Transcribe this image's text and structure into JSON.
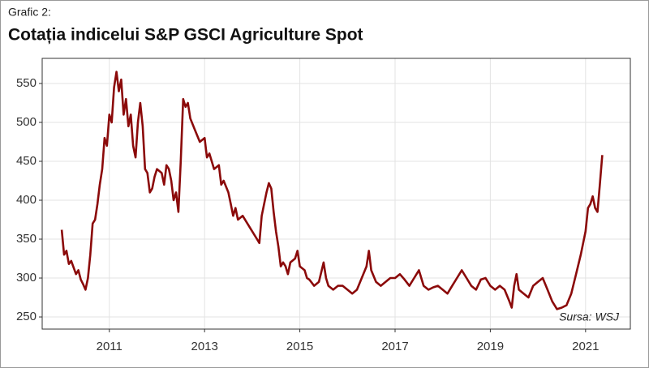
{
  "chart_data": {
    "type": "line",
    "subtitle": "Grafic 2:",
    "title": "Cotația indicelui S&P GSCI Agriculture Spot",
    "annotation": "Sursa: WSJ",
    "grid": true,
    "xlim": [
      2009.59,
      2021.94
    ],
    "ylim": [
      234.4,
      582.3
    ],
    "xticks": [
      2011,
      2013,
      2015,
      2017,
      2019,
      2021
    ],
    "yticks": [
      250,
      300,
      350,
      400,
      450,
      500,
      550
    ],
    "x": [
      2010.0,
      2010.05,
      2010.1,
      2010.15,
      2010.2,
      2010.3,
      2010.35,
      2010.4,
      2010.45,
      2010.5,
      2010.55,
      2010.6,
      2010.65,
      2010.7,
      2010.75,
      2010.8,
      2010.85,
      2010.9,
      2010.95,
      2011.0,
      2011.05,
      2011.1,
      2011.15,
      2011.2,
      2011.25,
      2011.3,
      2011.35,
      2011.4,
      2011.45,
      2011.5,
      2011.55,
      2011.6,
      2011.65,
      2011.7,
      2011.75,
      2011.8,
      2011.85,
      2011.9,
      2011.95,
      2012.0,
      2012.1,
      2012.15,
      2012.2,
      2012.25,
      2012.3,
      2012.35,
      2012.4,
      2012.45,
      2012.5,
      2012.55,
      2012.6,
      2012.65,
      2012.7,
      2012.8,
      2012.9,
      2013.0,
      2013.05,
      2013.1,
      2013.2,
      2013.3,
      2013.35,
      2013.4,
      2013.5,
      2013.55,
      2013.6,
      2013.65,
      2013.7,
      2013.8,
      2013.9,
      2014.0,
      2014.1,
      2014.15,
      2014.2,
      2014.3,
      2014.35,
      2014.4,
      2014.45,
      2014.5,
      2014.55,
      2014.6,
      2014.65,
      2014.7,
      2014.75,
      2014.8,
      2014.9,
      2014.95,
      2015.0,
      2015.1,
      2015.15,
      2015.2,
      2015.3,
      2015.4,
      2015.5,
      2015.55,
      2015.6,
      2015.7,
      2015.8,
      2015.9,
      2016.0,
      2016.1,
      2016.2,
      2016.3,
      2016.4,
      2016.45,
      2016.5,
      2016.6,
      2016.7,
      2016.8,
      2016.9,
      2017.0,
      2017.1,
      2017.2,
      2017.3,
      2017.4,
      2017.5,
      2017.55,
      2017.6,
      2017.7,
      2017.8,
      2017.9,
      2018.0,
      2018.1,
      2018.2,
      2018.3,
      2018.4,
      2018.5,
      2018.6,
      2018.7,
      2018.8,
      2018.9,
      2019.0,
      2019.1,
      2019.2,
      2019.3,
      2019.4,
      2019.45,
      2019.5,
      2019.55,
      2019.6,
      2019.7,
      2019.8,
      2019.9,
      2020.0,
      2020.1,
      2020.2,
      2020.3,
      2020.4,
      2020.5,
      2020.6,
      2020.7,
      2020.8,
      2020.9,
      2021.0,
      2021.05,
      2021.1,
      2021.15,
      2021.2,
      2021.25,
      2021.3,
      2021.35
    ],
    "series": [
      {
        "name": "S&P GSCI Agriculture Spot",
        "color": "#8b0a0a",
        "values": [
          362,
          330,
          335,
          318,
          322,
          305,
          310,
          298,
          292,
          285,
          300,
          330,
          370,
          375,
          395,
          420,
          440,
          480,
          470,
          510,
          500,
          545,
          565,
          540,
          555,
          510,
          530,
          495,
          510,
          470,
          455,
          500,
          525,
          495,
          440,
          435,
          410,
          415,
          430,
          440,
          435,
          420,
          445,
          440,
          425,
          400,
          410,
          385,
          450,
          530,
          520,
          525,
          505,
          490,
          475,
          480,
          455,
          460,
          440,
          445,
          420,
          425,
          410,
          395,
          380,
          390,
          375,
          380,
          370,
          360,
          350,
          345,
          380,
          410,
          422,
          415,
          385,
          360,
          340,
          315,
          320,
          315,
          305,
          320,
          325,
          335,
          315,
          310,
          300,
          298,
          290,
          295,
          320,
          300,
          290,
          285,
          290,
          290,
          285,
          280,
          285,
          300,
          315,
          335,
          310,
          295,
          290,
          295,
          300,
          300,
          305,
          298,
          290,
          300,
          310,
          300,
          290,
          285,
          288,
          290,
          285,
          280,
          290,
          300,
          310,
          300,
          290,
          285,
          298,
          300,
          290,
          285,
          290,
          285,
          270,
          262,
          290,
          305,
          285,
          280,
          275,
          290,
          295,
          300,
          285,
          270,
          260,
          262,
          265,
          280,
          305,
          330,
          360,
          390,
          395,
          405,
          390,
          385,
          420,
          458
        ]
      }
    ]
  }
}
